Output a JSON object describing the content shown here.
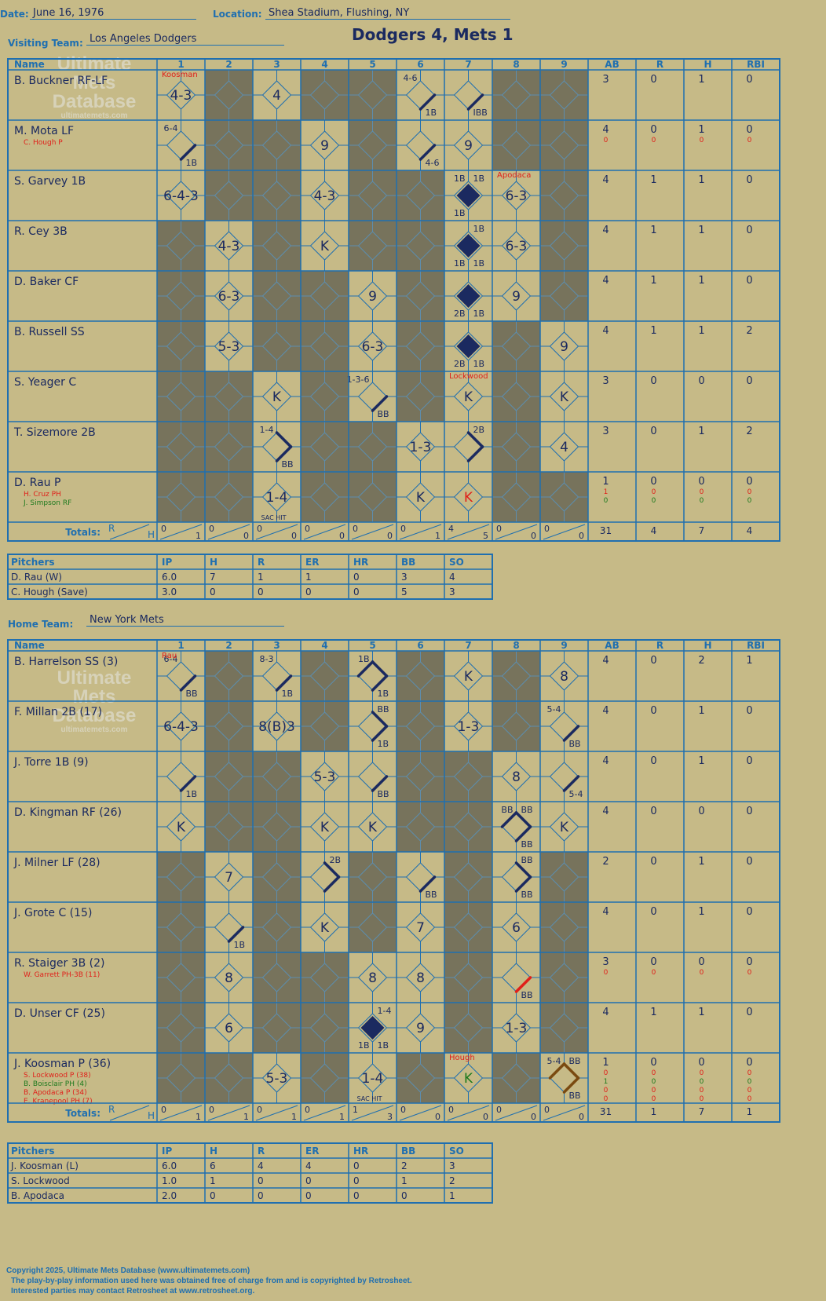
{
  "header": {
    "date_label": "Date:",
    "date": "June 16, 1976",
    "location_label": "Location:",
    "location": "Shea Stadium, Flushing, NY",
    "visiting_label": "Visiting Team:",
    "visiting_team": "Los Angeles Dodgers",
    "home_label": "Home Team:",
    "home_team": "New York Mets",
    "score_title": "Dodgers 4, Mets 1"
  },
  "columns": {
    "name": "Name",
    "innings": [
      "1",
      "2",
      "3",
      "4",
      "5",
      "6",
      "7",
      "8",
      "9"
    ],
    "stats": [
      "AB",
      "R",
      "H",
      "RBI"
    ],
    "totals": "Totals:",
    "r_letter": "R",
    "h_letter": "H"
  },
  "watermark": {
    "line1": "Ultimate",
    "line2": "Mets",
    "line3": "Database",
    "url": "ultimatemets.com"
  },
  "visitors": {
    "batters": [
      {
        "name": "B. Buckner RF-LF",
        "subs": [],
        "stats": [
          [
            "3",
            "0",
            "1",
            "0"
          ]
        ],
        "cells": [
          {
            "t": "4-3",
            "pitcher": "Koosman"
          },
          null,
          {
            "t": "4"
          },
          null,
          null,
          {
            "tl": "4-6",
            "br": "1B",
            "path": "1"
          },
          {
            "br": "IBB",
            "path": "1"
          },
          null,
          null
        ]
      },
      {
        "name": "M. Mota LF",
        "subs": [
          {
            "n": "C. Hough P",
            "c": "red"
          }
        ],
        "stats": [
          [
            "4",
            "0",
            "1",
            "0"
          ],
          [
            "0",
            "0",
            "0",
            "0"
          ]
        ],
        "cells": [
          {
            "tl": "6-4",
            "br": "1B",
            "path": "1"
          },
          null,
          null,
          {
            "t": "9"
          },
          null,
          {
            "br": "4-6",
            "path": "1"
          },
          {
            "t": "9"
          },
          null,
          null
        ]
      },
      {
        "name": "S. Garvey 1B",
        "subs": [],
        "stats": [
          [
            "4",
            "1",
            "1",
            "0"
          ]
        ],
        "cells": [
          {
            "t": "6-4-3"
          },
          null,
          null,
          {
            "t": "4-3"
          },
          null,
          null,
          {
            "run": true,
            "tl": "1B",
            "tr": "1B",
            "bl": "1B"
          },
          {
            "t": "6-3",
            "pitcher": "Apodaca"
          },
          null
        ]
      },
      {
        "name": "R. Cey 3B",
        "subs": [],
        "stats": [
          [
            "4",
            "1",
            "1",
            "0"
          ]
        ],
        "cells": [
          null,
          {
            "t": "4-3"
          },
          null,
          {
            "t": "K"
          },
          null,
          null,
          {
            "run": true,
            "tr": "1B",
            "bl": "1B",
            "br": "1B"
          },
          {
            "t": "6-3"
          },
          null
        ]
      },
      {
        "name": "D. Baker CF",
        "subs": [],
        "stats": [
          [
            "4",
            "1",
            "1",
            "0"
          ]
        ],
        "cells": [
          null,
          {
            "t": "6-3"
          },
          null,
          null,
          {
            "t": "9"
          },
          null,
          {
            "run": true,
            "bl": "2B",
            "br": "1B"
          },
          {
            "t": "9"
          },
          null
        ]
      },
      {
        "name": "B. Russell SS",
        "subs": [],
        "stats": [
          [
            "4",
            "1",
            "1",
            "2"
          ]
        ],
        "cells": [
          null,
          {
            "t": "5-3"
          },
          null,
          null,
          {
            "t": "6-3"
          },
          null,
          {
            "run": true,
            "bl": "2B",
            "br": "1B"
          },
          null,
          {
            "t": "9"
          }
        ]
      },
      {
        "name": "S. Yeager C",
        "subs": [],
        "stats": [
          [
            "3",
            "0",
            "0",
            "0"
          ]
        ],
        "cells": [
          null,
          null,
          {
            "t": "K"
          },
          null,
          {
            "tl": "1-3-6",
            "br": "BB",
            "path": "1"
          },
          null,
          {
            "t": "K",
            "pitcher": "Lockwood"
          },
          null,
          {
            "t": "K"
          }
        ]
      },
      {
        "name": "T. Sizemore 2B",
        "subs": [],
        "stats": [
          [
            "3",
            "0",
            "1",
            "2"
          ]
        ],
        "cells": [
          null,
          null,
          {
            "tl": "1-4",
            "br": "BB",
            "path": "12"
          },
          null,
          null,
          {
            "t": "1-3"
          },
          {
            "tr": "2B",
            "path": "12"
          },
          null,
          {
            "t": "4"
          }
        ]
      },
      {
        "name": "D. Rau P",
        "subs": [
          {
            "n": "H. Cruz PH",
            "c": "red"
          },
          {
            "n": "J. Simpson RF",
            "c": "green"
          }
        ],
        "stats": [
          [
            "1",
            "0",
            "0",
            "0"
          ],
          [
            "1",
            "0",
            "0",
            "0"
          ],
          [
            "0",
            "0",
            "0",
            "0"
          ]
        ],
        "cells": [
          null,
          null,
          {
            "t": "1-4",
            "bot": "SAC HIT"
          },
          null,
          null,
          {
            "t": "K"
          },
          {
            "t": "K",
            "tc": "red"
          },
          null,
          null
        ]
      }
    ],
    "totals": {
      "inn": [
        [
          "0",
          "1"
        ],
        [
          "0",
          "0"
        ],
        [
          "0",
          "0"
        ],
        [
          "0",
          "0"
        ],
        [
          "0",
          "0"
        ],
        [
          "0",
          "1"
        ],
        [
          "4",
          "5"
        ],
        [
          "0",
          "0"
        ],
        [
          "0",
          "0"
        ]
      ],
      "stats": [
        "31",
        "4",
        "7",
        "4"
      ]
    },
    "pitchers": {
      "header": [
        "Pitchers",
        "IP",
        "H",
        "R",
        "ER",
        "HR",
        "BB",
        "SO"
      ],
      "rows": [
        [
          "D. Rau (W)",
          "6.0",
          "7",
          "1",
          "1",
          "0",
          "3",
          "4"
        ],
        [
          "C. Hough (Save)",
          "3.0",
          "0",
          "0",
          "0",
          "0",
          "5",
          "3"
        ]
      ]
    }
  },
  "home": {
    "batters": [
      {
        "name": "B. Harrelson SS (3)",
        "subs": [],
        "stats": [
          [
            "4",
            "0",
            "2",
            "1"
          ]
        ],
        "cells": [
          {
            "tl": "6-4",
            "br": "BB",
            "path": "1",
            "pitcher": "Rau"
          },
          null,
          {
            "tl": "8-3",
            "br": "1B",
            "path": "1"
          },
          null,
          {
            "tl": "1B",
            "br": "1B",
            "path": "123"
          },
          null,
          {
            "t": "K"
          },
          null,
          {
            "t": "8"
          }
        ]
      },
      {
        "name": "F. Millan 2B (17)",
        "subs": [],
        "stats": [
          [
            "4",
            "0",
            "1",
            "0"
          ]
        ],
        "cells": [
          {
            "t": "6-4-3"
          },
          null,
          {
            "t": "8(B)3"
          },
          null,
          {
            "tr": "BB",
            "br": "1B",
            "path": "12"
          },
          null,
          {
            "t": "1-3"
          },
          null,
          {
            "tl": "5-4",
            "br": "BB",
            "path": "1"
          }
        ]
      },
      {
        "name": "J. Torre 1B (9)",
        "subs": [],
        "stats": [
          [
            "4",
            "0",
            "1",
            "0"
          ]
        ],
        "cells": [
          {
            "br": "1B",
            "path": "1"
          },
          null,
          null,
          {
            "t": "5-3"
          },
          {
            "br": "BB",
            "path": "1"
          },
          null,
          null,
          {
            "t": "8"
          },
          {
            "br": "5-4",
            "path": "1"
          }
        ]
      },
      {
        "name": "D. Kingman RF (26)",
        "subs": [],
        "stats": [
          [
            "4",
            "0",
            "0",
            "0"
          ]
        ],
        "cells": [
          {
            "t": "K"
          },
          null,
          null,
          {
            "t": "K"
          },
          {
            "t": "K"
          },
          null,
          null,
          {
            "tl": "BB",
            "tr": "BB",
            "br": "BB",
            "path": "123"
          },
          {
            "t": "K"
          }
        ]
      },
      {
        "name": "J. Milner LF (28)",
        "subs": [],
        "stats": [
          [
            "2",
            "0",
            "1",
            "0"
          ]
        ],
        "cells": [
          null,
          {
            "t": "7"
          },
          null,
          {
            "tr": "2B",
            "path": "12"
          },
          null,
          {
            "br": "BB",
            "path": "1"
          },
          null,
          {
            "tr": "BB",
            "br": "BB",
            "path": "12"
          },
          null
        ]
      },
      {
        "name": "J. Grote C (15)",
        "subs": [],
        "stats": [
          [
            "4",
            "0",
            "1",
            "0"
          ]
        ],
        "cells": [
          null,
          {
            "br": "1B",
            "path": "1"
          },
          null,
          {
            "t": "K"
          },
          null,
          {
            "t": "7"
          },
          null,
          {
            "t": "6"
          },
          null
        ]
      },
      {
        "name": "R. Staiger 3B (2)",
        "subs": [
          {
            "n": "W. Garrett PH-3B (11)",
            "c": "red"
          }
        ],
        "stats": [
          [
            "3",
            "0",
            "0",
            "0"
          ],
          [
            "0",
            "0",
            "0",
            "0"
          ]
        ],
        "cells": [
          null,
          {
            "t": "8"
          },
          null,
          null,
          {
            "t": "8"
          },
          {
            "t": "8"
          },
          null,
          {
            "br": "BB",
            "path": "1",
            "pc": "red"
          },
          null
        ]
      },
      {
        "name": "D. Unser CF (25)",
        "subs": [],
        "stats": [
          [
            "4",
            "1",
            "1",
            "0"
          ]
        ],
        "cells": [
          null,
          {
            "t": "6"
          },
          null,
          null,
          {
            "run": true,
            "tr": "1-4",
            "bl": "1B",
            "br": "1B"
          },
          {
            "t": "9"
          },
          null,
          {
            "t": "1-3"
          },
          null
        ]
      },
      {
        "name": "J. Koosman P (36)",
        "subs": [
          {
            "n": "S. Lockwood P (38)",
            "c": "red"
          },
          {
            "n": "B. Boisclair PH (4)",
            "c": "green"
          },
          {
            "n": "B. Apodaca P (34)",
            "c": "red"
          },
          {
            "n": "E. Kranepool PH (7)",
            "c": "red"
          }
        ],
        "stats": [
          [
            "1",
            "0",
            "0",
            "0"
          ],
          [
            "0",
            "0",
            "0",
            "0"
          ],
          [
            "1",
            "0",
            "0",
            "0"
          ],
          [
            "0",
            "0",
            "0",
            "0"
          ],
          [
            "0",
            "0",
            "0",
            "0"
          ]
        ],
        "cells": [
          null,
          null,
          {
            "t": "5-3"
          },
          null,
          {
            "t": "1-4",
            "bot": "SAC HIT"
          },
          null,
          {
            "t": "K",
            "tc": "green",
            "pitcher": "Hough"
          },
          null,
          {
            "tl": "5-4",
            "tr": "BB",
            "br": "BB",
            "path": "123",
            "pc": "brown"
          }
        ]
      }
    ],
    "totals": {
      "inn": [
        [
          "0",
          "1"
        ],
        [
          "0",
          "1"
        ],
        [
          "0",
          "1"
        ],
        [
          "0",
          "1"
        ],
        [
          "1",
          "3"
        ],
        [
          "0",
          "0"
        ],
        [
          "0",
          "0"
        ],
        [
          "0",
          "0"
        ],
        [
          "0",
          "0"
        ]
      ],
      "stats": [
        "31",
        "1",
        "7",
        "1"
      ]
    },
    "pitchers": {
      "header": [
        "Pitchers",
        "IP",
        "H",
        "R",
        "ER",
        "HR",
        "BB",
        "SO"
      ],
      "rows": [
        [
          "J. Koosman (L)",
          "6.0",
          "6",
          "4",
          "4",
          "0",
          "2",
          "3"
        ],
        [
          "S. Lockwood",
          "1.0",
          "1",
          "0",
          "0",
          "0",
          "1",
          "2"
        ],
        [
          "B. Apodaca",
          "2.0",
          "0",
          "0",
          "0",
          "0",
          "0",
          "1"
        ]
      ]
    }
  },
  "copyright": {
    "line1": "Copyright 2025, Ultimate Mets Database (www.ultimatemets.com)",
    "line2": "The play-by-play information used here was obtained free of charge from and is copyrighted by Retrosheet.",
    "line3": "Interested parties may contact Retrosheet at www.retrosheet.org."
  },
  "colors": {
    "background": "#c6ba87",
    "dark_cell": "#77735c",
    "line": "#1f6fb0",
    "ink": "#1b2a60",
    "red": "#e0201a",
    "green": "#1e7a1e",
    "brown": "#7a4a10"
  }
}
